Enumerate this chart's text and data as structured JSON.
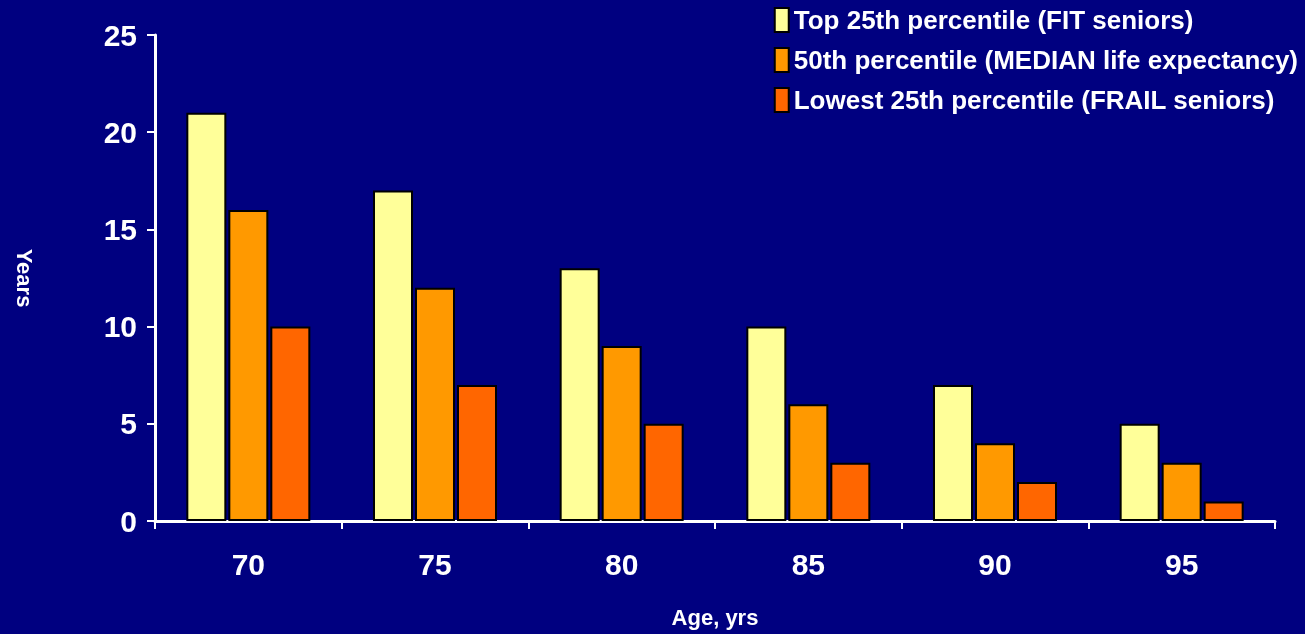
{
  "chart_data": {
    "type": "bar",
    "xlabel": "Age, yrs",
    "ylabel": "Years",
    "categories": [
      "70",
      "75",
      "80",
      "85",
      "90",
      "95"
    ],
    "series": [
      {
        "name": "Top 25th percentile (FIT seniors)",
        "color": "#ffff99",
        "values": [
          21,
          17,
          13,
          10,
          7,
          5
        ]
      },
      {
        "name": "50th percentile (MEDIAN life expectancy)",
        "color": "#ff9900",
        "values": [
          16,
          12,
          9,
          6,
          4,
          3
        ]
      },
      {
        "name": "Lowest 25th percentile (FRAIL seniors)",
        "color": "#ff6600",
        "values": [
          10,
          7,
          5,
          3,
          2,
          1
        ]
      }
    ],
    "ylim": [
      0,
      25
    ],
    "yticks": [
      0,
      5,
      10,
      15,
      20,
      25
    ],
    "grid": false,
    "legend": "top right"
  }
}
